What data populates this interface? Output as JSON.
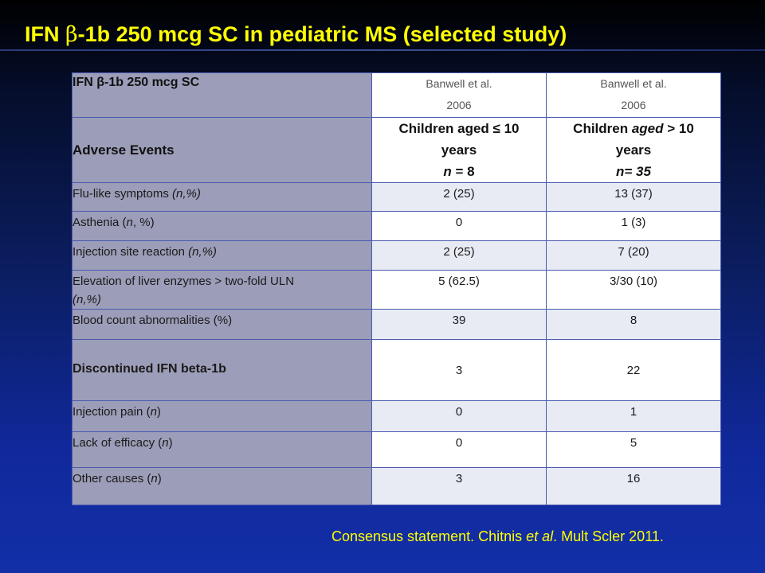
{
  "title": {
    "prefix": "IFN ",
    "beta": "β",
    "suffix": "-1b 250 mcg SC in pediatric MS (selected study)"
  },
  "table": {
    "header": {
      "label": "IFN β-1b 250 mcg SC",
      "col1_source": [
        "Banwell et al.",
        "2006"
      ],
      "col2_source": [
        "Banwell et al.",
        "2006"
      ]
    },
    "subheader": {
      "label": "Adverse Events",
      "col1_line1": "Children aged ≤ 10",
      "col1_line2": "years",
      "col1_line3_prefix": "n",
      "col1_line3_suffix": " = 8",
      "col2_line1_prefix": "Children ",
      "col2_line1_italic": "aged",
      "col2_line1_suffix": " > 10",
      "col2_line2": "years",
      "col2_line3": "n= 35"
    },
    "rows": [
      {
        "label": "Flu-like symptoms ",
        "label_italic": "(n,%)",
        "v1": "2 (25)",
        "v2": "13 (37)"
      },
      {
        "label": "Asthenia (",
        "label_italic": "n",
        "label_tail": ", %)",
        "v1": "0",
        "v2": "1 (3)"
      },
      {
        "label": "Injection site reaction ",
        "label_italic": "(n,%)",
        "v1": "2 (25)",
        "v2": "7 (20)"
      },
      {
        "label": "Elevation of liver enzymes > two-fold ULN",
        "label_line2": "(n,%)",
        "v1": "5 (62.5)",
        "v2": "3/30 (10)"
      },
      {
        "label": "Blood count abnormalities  (%)",
        "v1": "39",
        "v2": "8"
      },
      {
        "label": "Discontinued IFN beta-1b",
        "v1": "3",
        "v2": "22"
      },
      {
        "label": "Injection pain (",
        "label_italic": "n",
        "label_tail": ")",
        "v1": "0",
        "v2": "1"
      },
      {
        "label": "Lack of efficacy (",
        "label_italic": "n",
        "label_tail": ")",
        "v1": "0",
        "v2": "5"
      },
      {
        "label": "Other causes (",
        "label_italic": "n",
        "label_tail": ")",
        "v1": "3",
        "v2": "16"
      }
    ]
  },
  "citation": {
    "prefix": "Consensus statement. Chitnis ",
    "italic": "et al",
    "suffix": ". Mult Scler 2011."
  },
  "colors": {
    "title": "#ffff00",
    "citation": "#ffff00",
    "label_column": "#9c9db8",
    "grid": "#4a5ab0"
  }
}
